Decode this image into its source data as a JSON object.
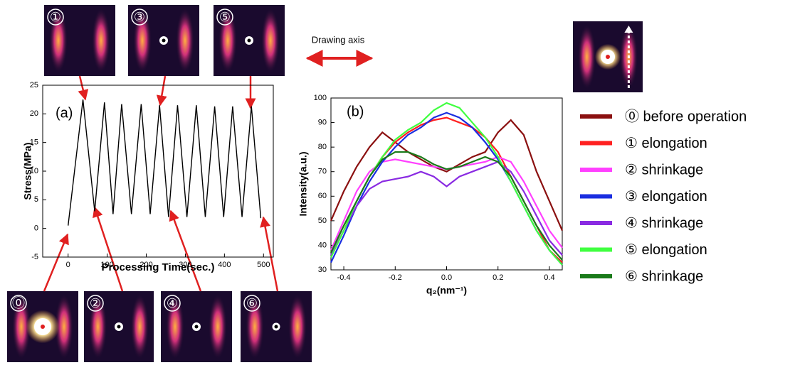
{
  "drawing_axis": "Drawing axis",
  "images": [
    {
      "label": "①"
    },
    {
      "label": "③"
    },
    {
      "label": "⑤"
    },
    {
      "label": "⓪"
    },
    {
      "label": "②"
    },
    {
      "label": "④"
    },
    {
      "label": "⑥"
    }
  ],
  "chart_data": [
    {
      "type": "line",
      "annotation": "(a)",
      "x_label": "Processing Time(sec.)",
      "y_label": "Stress(MPa)",
      "color": "#000000",
      "x": [
        0,
        38,
        68,
        93,
        115,
        137,
        162,
        187,
        210,
        234,
        257,
        280,
        304,
        328,
        351,
        375,
        398,
        421,
        445,
        469,
        493,
        497,
        505
      ],
      "values": [
        0.5,
        22.5,
        3,
        22,
        2.5,
        21.7,
        2.5,
        21.7,
        2.5,
        21.5,
        2,
        21.5,
        2,
        21.5,
        2,
        21.3,
        2,
        21.3,
        2,
        21.3,
        1.8,
        null,
        2.5
      ],
      "xlim": [
        -65,
        525
      ],
      "ylim": [
        -5,
        25
      ],
      "xticks": [
        0,
        100,
        200,
        300,
        400,
        500
      ],
      "yticks": [
        -5,
        0,
        5,
        10,
        15,
        20,
        25
      ]
    },
    {
      "type": "line",
      "annotation": "(b)",
      "x_label": "q₂(nm⁻¹)",
      "y_label": "Intensity(a.u.)",
      "legend": "right",
      "x": [
        -0.45,
        -0.4,
        -0.35,
        -0.3,
        -0.25,
        -0.2,
        -0.15,
        -0.1,
        -0.05,
        0,
        0.05,
        0.1,
        0.15,
        0.2,
        0.25,
        0.3,
        0.35,
        0.4,
        0.45
      ],
      "series": [
        {
          "name": "⓪ before operation",
          "color": "#8b1010",
          "values": [
            50,
            62,
            72,
            80,
            86,
            82,
            78,
            75,
            72,
            70,
            73,
            76,
            78,
            86,
            91,
            85,
            70,
            58,
            46
          ]
        },
        {
          "name": "① elongation",
          "color": "#ff2020",
          "values": [
            37,
            48,
            58,
            68,
            76,
            82,
            86,
            89,
            91,
            92,
            90,
            88,
            84,
            78,
            68,
            58,
            48,
            38,
            33
          ]
        },
        {
          "name": "② shrinkage",
          "color": "#ff40ff",
          "values": [
            38,
            50,
            62,
            70,
            74,
            75,
            74,
            73,
            72,
            71,
            72,
            73,
            74,
            76,
            74,
            66,
            56,
            46,
            39
          ]
        },
        {
          "name": "③ elongation",
          "color": "#1a2ee0",
          "values": [
            33,
            44,
            56,
            66,
            74,
            80,
            85,
            88,
            92,
            94,
            92,
            88,
            82,
            75,
            66,
            56,
            46,
            38,
            32
          ]
        },
        {
          "name": "④ shrinkage",
          "color": "#8a2be2",
          "values": [
            36,
            46,
            56,
            63,
            66,
            67,
            68,
            70,
            68,
            64,
            68,
            70,
            72,
            74,
            70,
            62,
            52,
            42,
            36
          ]
        },
        {
          "name": "⑤ elongation",
          "color": "#40ff40",
          "values": [
            35,
            46,
            58,
            68,
            76,
            83,
            87,
            90,
            95,
            98,
            96,
            90,
            84,
            76,
            66,
            56,
            46,
            38,
            32
          ]
        },
        {
          "name": "⑥ shrinkage",
          "color": "#1a7a1a",
          "values": [
            37,
            48,
            58,
            68,
            75,
            78,
            78,
            76,
            73,
            71,
            72,
            74,
            76,
            74,
            68,
            58,
            48,
            40,
            34
          ]
        }
      ],
      "xlim": [
        -0.45,
        0.45
      ],
      "ylim": [
        30,
        100
      ],
      "xticks": [
        -0.4,
        -0.2,
        {
          "value": 0,
          "label": "0.0"
        },
        0.2,
        0.4
      ],
      "yticks": [
        30,
        40,
        50,
        60,
        70,
        80,
        90,
        100
      ]
    }
  ]
}
